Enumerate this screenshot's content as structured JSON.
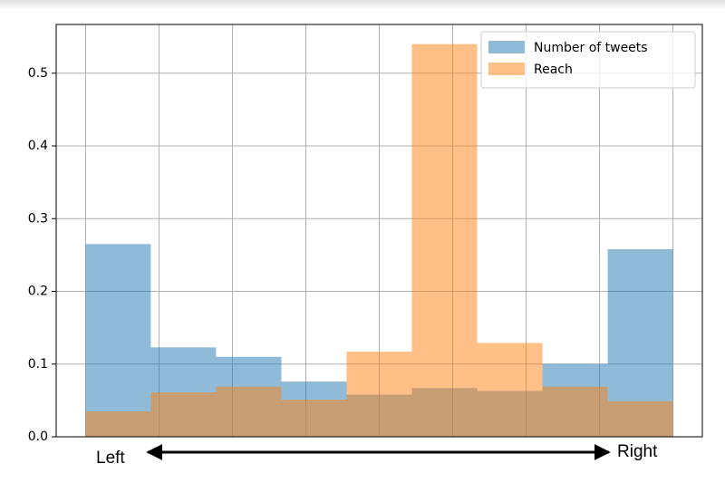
{
  "chart_data": {
    "type": "histogram",
    "bins": [
      -1,
      -0.7778,
      -0.5556,
      -0.3333,
      -0.1111,
      0.1111,
      0.3333,
      0.5556,
      0.7778,
      1
    ],
    "series": [
      {
        "name": "Number of tweets",
        "color": "#1f77b4",
        "values": [
          0.265,
          0.123,
          0.11,
          0.076,
          0.058,
          0.067,
          0.063,
          0.1,
          0.258
        ]
      },
      {
        "name": "Reach",
        "color": "#ff7f0e",
        "values": [
          0.035,
          0.061,
          0.069,
          0.051,
          0.117,
          0.54,
          0.129,
          0.069,
          0.049
        ]
      }
    ],
    "xlim": [
      -1.1,
      1.1
    ],
    "xticks": [
      -1,
      -0.75,
      -0.5,
      -0.25,
      0,
      0.25,
      0.5,
      0.75,
      1
    ],
    "ylim": [
      0,
      0.567
    ],
    "yticks": [
      {
        "value": 0,
        "label": "0.0"
      },
      0.1,
      0.2,
      0.3,
      0.4,
      0.5
    ],
    "grid": true,
    "legend": "upper right",
    "opacity": 0.5,
    "annotations": {
      "left": "Left",
      "right": "Right"
    }
  }
}
